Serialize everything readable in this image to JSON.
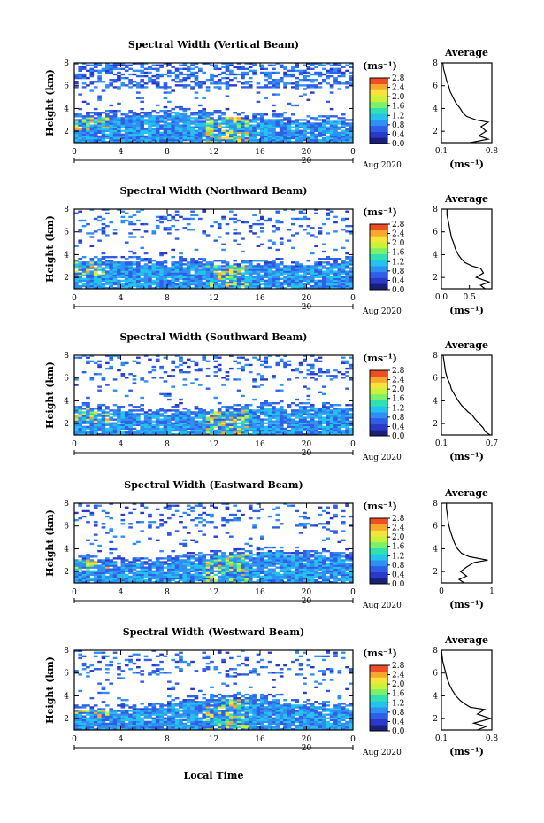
{
  "figure": {
    "x_axis_label": "Local Time",
    "date_label": "Aug 2020",
    "day_label": "20",
    "colorbar_unit": "(ms⁻¹)",
    "colorbar_ticks": [
      "0.0",
      "0.4",
      "0.8",
      "1.2",
      "1.6",
      "2.0",
      "2.4",
      "2.8"
    ],
    "colors": {
      "scale": [
        "#1a1f7a",
        "#2b39c8",
        "#2f5fe6",
        "#2f8ff2",
        "#24c3ee",
        "#2fe0b0",
        "#7cf06a",
        "#c9f23a",
        "#f5e53a",
        "#f7a82e",
        "#ef4e24"
      ]
    }
  },
  "chart_data": [
    {
      "type": "heatmap",
      "title": "Spectral Width (Vertical Beam)",
      "ylabel": "Height (km)",
      "xlabel": "",
      "x_ticks": [
        "0",
        "4",
        "8",
        "12",
        "16",
        "20",
        "0"
      ],
      "x_range_hours": [
        0,
        24
      ],
      "y_ticks": [
        "2",
        "4",
        "6",
        "8"
      ],
      "y_range_km": [
        1,
        8
      ],
      "colorbar": {
        "label": "(ms⁻¹)",
        "range": [
          0,
          2.8
        ]
      },
      "profile": {
        "title": "Average",
        "xlabel": "(ms⁻¹)",
        "x_ticks": [
          "0.1",
          "0.8"
        ],
        "x_range": [
          0.1,
          0.8
        ],
        "y_range_km": [
          1,
          8
        ],
        "height_km": [
          1.0,
          1.3,
          1.6,
          2.0,
          2.4,
          2.8,
          3.0,
          3.3,
          3.6,
          4.0,
          4.5,
          5.0,
          5.5,
          6.0,
          6.5,
          7.0,
          7.5,
          8.0
        ],
        "width": [
          0.5,
          0.75,
          0.62,
          0.72,
          0.65,
          0.75,
          0.58,
          0.45,
          0.4,
          0.36,
          0.3,
          0.26,
          0.22,
          0.2,
          0.17,
          0.15,
          0.13,
          0.12
        ]
      }
    },
    {
      "type": "heatmap",
      "title": "Spectral Width (Northward Beam)",
      "ylabel": "Height (km)",
      "xlabel": "",
      "x_ticks": [
        "0",
        "4",
        "8",
        "12",
        "16",
        "20",
        "0"
      ],
      "x_range_hours": [
        0,
        24
      ],
      "y_ticks": [
        "2",
        "4",
        "6",
        "8"
      ],
      "y_range_km": [
        1,
        8
      ],
      "colorbar": {
        "label": "(ms⁻¹)",
        "range": [
          0,
          2.8
        ]
      },
      "profile": {
        "title": "Average",
        "xlabel": "(ms⁻¹)",
        "x_ticks": [
          "0.0",
          "0.5"
        ],
        "x_range": [
          0.0,
          0.9
        ],
        "y_range_km": [
          1,
          8
        ],
        "height_km": [
          1.0,
          1.3,
          1.6,
          2.0,
          2.4,
          2.8,
          3.0,
          3.3,
          3.6,
          4.0,
          4.5,
          5.0,
          5.5,
          6.0,
          6.5,
          7.0,
          7.5,
          8.0
        ],
        "width": [
          0.78,
          0.7,
          0.85,
          0.62,
          0.75,
          0.7,
          0.55,
          0.42,
          0.36,
          0.3,
          0.25,
          0.22,
          0.18,
          0.16,
          0.14,
          0.12,
          0.1,
          0.1
        ]
      }
    },
    {
      "type": "heatmap",
      "title": "Spectral Width (Southward Beam)",
      "ylabel": "Height (km)",
      "xlabel": "",
      "x_ticks": [
        "0",
        "4",
        "8",
        "12",
        "16",
        "20",
        "0"
      ],
      "x_range_hours": [
        0,
        24
      ],
      "y_ticks": [
        "2",
        "4",
        "6",
        "8"
      ],
      "y_range_km": [
        1,
        8
      ],
      "colorbar": {
        "label": "(ms⁻¹)",
        "range": [
          0,
          2.8
        ]
      },
      "profile": {
        "title": "Average",
        "xlabel": "(ms⁻¹)",
        "x_ticks": [
          "0.1",
          "0.7"
        ],
        "x_range": [
          0.1,
          0.7
        ],
        "y_range_km": [
          1,
          8
        ],
        "height_km": [
          1.0,
          1.3,
          1.6,
          2.0,
          2.4,
          2.8,
          3.0,
          3.3,
          3.6,
          4.0,
          4.5,
          5.0,
          5.5,
          6.0,
          6.5,
          7.0,
          7.5,
          8.0
        ],
        "width": [
          0.68,
          0.62,
          0.6,
          0.55,
          0.5,
          0.46,
          0.42,
          0.38,
          0.34,
          0.3,
          0.26,
          0.22,
          0.2,
          0.17,
          0.15,
          0.14,
          0.13,
          0.12
        ]
      }
    },
    {
      "type": "heatmap",
      "title": "Spectral Width (Eastward Beam)",
      "ylabel": "Height (km)",
      "xlabel": "",
      "x_ticks": [
        "0",
        "4",
        "8",
        "12",
        "16",
        "20",
        "0"
      ],
      "x_range_hours": [
        0,
        24
      ],
      "y_ticks": [
        "2",
        "4",
        "6",
        "8"
      ],
      "y_range_km": [
        1,
        8
      ],
      "colorbar": {
        "label": "(ms⁻¹)",
        "range": [
          0,
          2.8
        ]
      },
      "profile": {
        "title": "Average",
        "xlabel": "(ms⁻¹)",
        "x_ticks": [
          "0",
          "1"
        ],
        "x_range": [
          0,
          1
        ],
        "y_range_km": [
          1,
          8
        ],
        "height_km": [
          1.0,
          1.3,
          1.6,
          2.0,
          2.4,
          2.8,
          3.0,
          3.3,
          3.6,
          4.0,
          4.5,
          5.0,
          5.5,
          6.0,
          6.5,
          7.0,
          7.5,
          8.0
        ],
        "width": [
          0.45,
          0.35,
          0.5,
          0.38,
          0.5,
          0.65,
          0.92,
          0.55,
          0.4,
          0.32,
          0.26,
          0.22,
          0.18,
          0.15,
          0.13,
          0.12,
          0.1,
          0.1
        ]
      }
    },
    {
      "type": "heatmap",
      "title": "Spectral Width (Westward Beam)",
      "ylabel": "Height (km)",
      "xlabel": "Local Time",
      "x_ticks": [
        "0",
        "4",
        "8",
        "12",
        "16",
        "20",
        "0"
      ],
      "x_range_hours": [
        0,
        24
      ],
      "y_ticks": [
        "2",
        "4",
        "6",
        "8"
      ],
      "y_range_km": [
        1,
        8
      ],
      "colorbar": {
        "label": "(ms⁻¹)",
        "range": [
          0,
          2.8
        ]
      },
      "profile": {
        "title": "Average",
        "xlabel": "(ms⁻¹)",
        "x_ticks": [
          "0.1",
          "0.8"
        ],
        "x_range": [
          0.1,
          0.8
        ],
        "y_range_km": [
          1,
          8
        ],
        "height_km": [
          1.0,
          1.3,
          1.6,
          2.0,
          2.4,
          2.8,
          3.0,
          3.3,
          3.6,
          4.0,
          4.5,
          5.0,
          5.5,
          6.0,
          6.5,
          7.0,
          7.5,
          8.0
        ],
        "width": [
          0.6,
          0.72,
          0.55,
          0.78,
          0.6,
          0.7,
          0.5,
          0.42,
          0.36,
          0.3,
          0.25,
          0.21,
          0.18,
          0.16,
          0.14,
          0.12,
          0.11,
          0.1
        ]
      }
    }
  ]
}
